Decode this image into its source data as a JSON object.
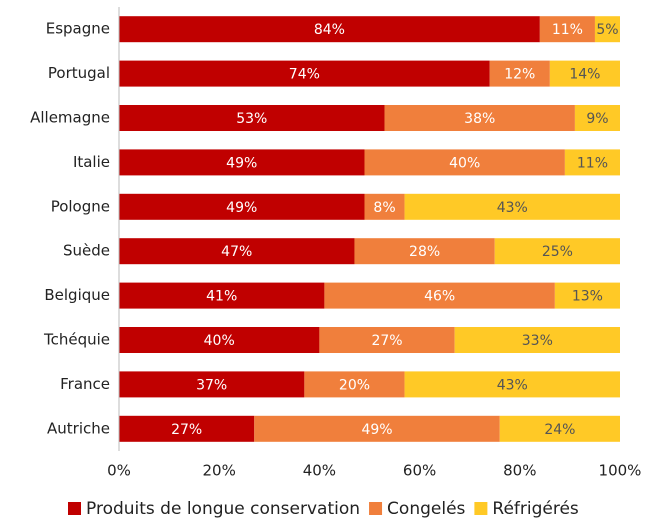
{
  "chart_data": {
    "type": "stacked_barh",
    "categories": [
      "Espagne",
      "Portugal",
      "Allemagne",
      "Italie",
      "Pologne",
      "Suède",
      "Belgique",
      "Tchéquie",
      "France",
      "Autriche"
    ],
    "series": [
      {
        "name": "Produits de longue conservation",
        "color": "#c00000",
        "values": [
          84,
          74,
          53,
          49,
          49,
          47,
          41,
          40,
          37,
          27
        ],
        "value_labels": [
          "84%",
          "74%",
          "53%",
          "49%",
          "49%",
          "47%",
          "41%",
          "40%",
          "37%",
          "27%"
        ]
      },
      {
        "name": "Congelés",
        "color": "#f07f3c",
        "values": [
          11,
          12,
          38,
          40,
          8,
          28,
          46,
          27,
          20,
          49
        ],
        "value_labels": [
          "11%",
          "12%",
          "38%",
          "40%",
          "8%",
          "28%",
          "46%",
          "27%",
          "20%",
          "49%"
        ]
      },
      {
        "name": "Réfrigérés",
        "color": "#ffc926",
        "values": [
          5,
          14,
          9,
          11,
          43,
          25,
          13,
          33,
          43,
          24
        ],
        "value_labels": [
          "5%",
          "14%",
          "9%",
          "11%",
          "43%",
          "25%",
          "13%",
          "33%",
          "43%",
          "24%"
        ]
      }
    ],
    "xlim": [
      0,
      100
    ],
    "xticks": [
      {
        "value": 0,
        "label": "0%"
      },
      {
        "value": 20,
        "label": "20%"
      },
      {
        "value": 40,
        "label": "40%"
      },
      {
        "value": 60,
        "label": "60%"
      },
      {
        "value": 80,
        "label": "80%"
      },
      {
        "value": 100,
        "label": "100%"
      }
    ],
    "legend": "bottom"
  }
}
